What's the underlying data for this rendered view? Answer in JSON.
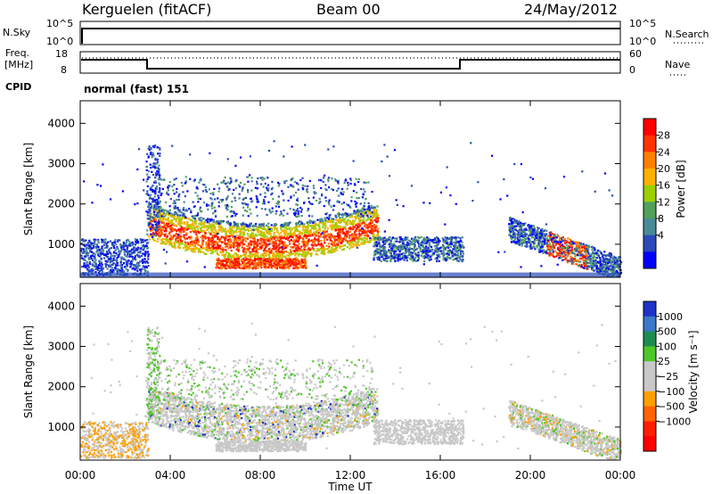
{
  "header": {
    "station": "Kerguelen (fitACF)",
    "beam": "Beam 00",
    "date": "24/May/2012"
  },
  "panels": {
    "nsky": {
      "left_label": "N.Sky",
      "right_label": "N.Search",
      "ticks_left": [
        "10^5",
        "10^0"
      ],
      "ticks_right": [
        "10^5",
        "10^0"
      ]
    },
    "freq": {
      "left_label_1": "Freq.",
      "left_label_2": "[MHz]",
      "right_label": "Nave",
      "ticks_left": [
        "18",
        "8"
      ],
      "ticks_right": [
        "60",
        "0"
      ]
    },
    "cpid": {
      "label": "CPID",
      "value": "normal (fast) 151"
    }
  },
  "chart_data": [
    {
      "type": "heatmap",
      "name": "power",
      "ylabel": "Slant Range [km]",
      "xlabel": "Time UT",
      "ylim": [
        180,
        4560
      ],
      "yticks": [
        "1000",
        "2000",
        "3000",
        "4000"
      ],
      "xticks": [
        "00:00",
        "04:00",
        "08:00",
        "12:00",
        "16:00",
        "20:00",
        "00:00"
      ],
      "colorbar": {
        "title": "Power [dB]",
        "ticks": [
          "28",
          "24",
          "20",
          "16",
          "12",
          "8",
          "4"
        ],
        "colors": [
          "#ff0000",
          "#ff3300",
          "#ff8000",
          "#ffb000",
          "#9ad000",
          "#52a05a",
          "#4a8a98",
          "#2a4ab8",
          "#0000ff"
        ]
      }
    },
    {
      "type": "heatmap",
      "name": "velocity",
      "ylabel": "Slant Range [km]",
      "xlabel": "Time UT",
      "ylim": [
        180,
        4560
      ],
      "yticks": [
        "1000",
        "2000",
        "3000",
        "4000"
      ],
      "xticks": [
        "00:00",
        "04:00",
        "08:00",
        "12:00",
        "16:00",
        "20:00",
        "00:00"
      ],
      "colorbar": {
        "title": "Velocity [m s⁻¹]",
        "ticks": [
          "1000",
          "500",
          "100",
          "25",
          "−25",
          "−100",
          "−500",
          "−1000"
        ],
        "colors": [
          "#1e32c8",
          "#3c78c8",
          "#1e8c50",
          "#4ec828",
          "#c8c8c8",
          "#c8c8c8",
          "#ffa000",
          "#ff6400",
          "#ff1e00",
          "#ff0000"
        ]
      }
    }
  ],
  "footer": {
    "xlabel": "Time UT"
  }
}
